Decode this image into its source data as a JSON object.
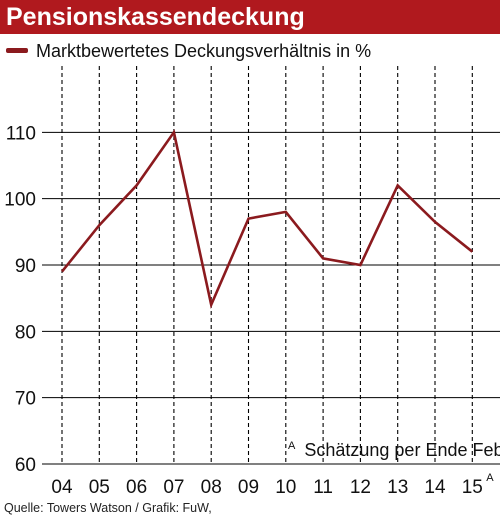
{
  "chart_data": {
    "type": "line",
    "title": "Pensionskassendeckung",
    "categories": [
      "04",
      "05",
      "06",
      "07",
      "08",
      "09",
      "10",
      "11",
      "12",
      "13",
      "14",
      "15"
    ],
    "last_category_superscript": "A",
    "series": [
      {
        "name": "Marktbewertetes Deckungsverhältnis in %",
        "color": "#8b1a1e",
        "values": [
          89,
          96,
          102,
          110,
          84,
          97,
          98,
          91,
          90,
          102,
          96.5,
          92
        ]
      }
    ],
    "y_ticks": [
      60,
      70,
      80,
      90,
      100,
      110
    ],
    "ylim": [
      60,
      120
    ],
    "grid": "dashed vertical lines at each category, solid horizontal lines at each y tick",
    "legend_position": "top-left",
    "annotation": {
      "superscript": "A",
      "text": "Schätzung per Ende Februar"
    },
    "source": "Quelle: Towers Watson / Grafik: FuW,"
  },
  "colors": {
    "title_background": "#b0191e",
    "title_text": "#ffffff",
    "line": "#8b1a1e",
    "grid": "#000000"
  }
}
